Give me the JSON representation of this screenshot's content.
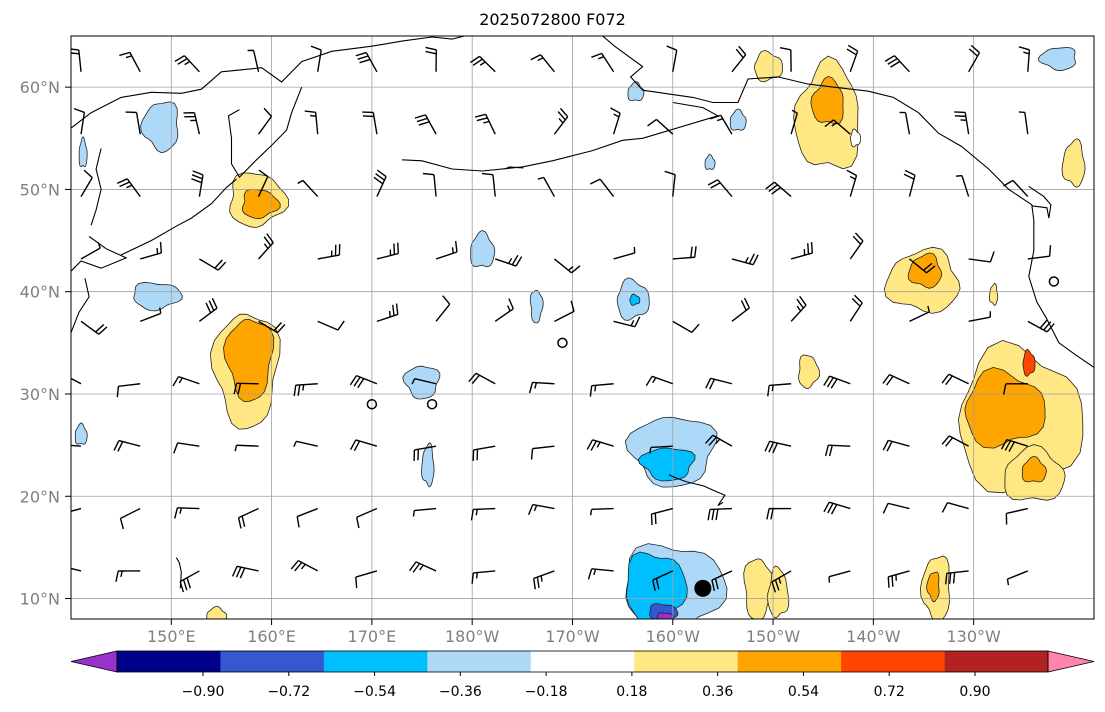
{
  "title": "2025072800 F072",
  "map": {
    "lat_labels": [
      "60°N",
      "50°N",
      "40°N",
      "30°N",
      "20°N",
      "10°N"
    ],
    "lon_labels": [
      "150°E",
      "160°E",
      "170°E",
      "180°W",
      "170°W",
      "160°W",
      "150°W",
      "140°W",
      "130°W"
    ],
    "lat_values": [
      60,
      50,
      40,
      30,
      20,
      10
    ],
    "lon_values": [
      150,
      160,
      170,
      180,
      190,
      200,
      210,
      220,
      230
    ],
    "extent": {
      "lon_min": 140,
      "lon_max": 242,
      "lat_min": 8,
      "lat_max": 65
    },
    "marker": {
      "lon": 203,
      "lat": 11,
      "symbol": "filled-circle"
    },
    "open_circles": [
      {
        "lon": 170,
        "lat": 29
      },
      {
        "lon": 176,
        "lat": 29
      },
      {
        "lon": 189,
        "lat": 35
      },
      {
        "lon": 238,
        "lat": 41
      }
    ],
    "grid": true,
    "features": [
      "coastlines",
      "wind-barbs",
      "filled-contours"
    ]
  },
  "colorbar": {
    "tick_labels": [
      "−0.90",
      "−0.72",
      "−0.54",
      "−0.36",
      "−0.18",
      "0.18",
      "0.36",
      "0.54",
      "0.72",
      "0.90"
    ],
    "levels": [
      -0.9,
      -0.72,
      -0.54,
      -0.36,
      -0.18,
      0.18,
      0.36,
      0.54,
      0.72,
      0.9
    ],
    "colors": [
      "#9932cc",
      "#00008b",
      "#3458cf",
      "#00bfff",
      "#add8f8",
      "#ffffff",
      "#ffe884",
      "#ffa500",
      "#ff4500",
      "#b22222",
      "#ff85ad"
    ],
    "extend": "both"
  },
  "colors": {
    "grid": "#a0a0a0",
    "coast": "#000000",
    "axis_label": "#808080",
    "barb": "#000000"
  }
}
